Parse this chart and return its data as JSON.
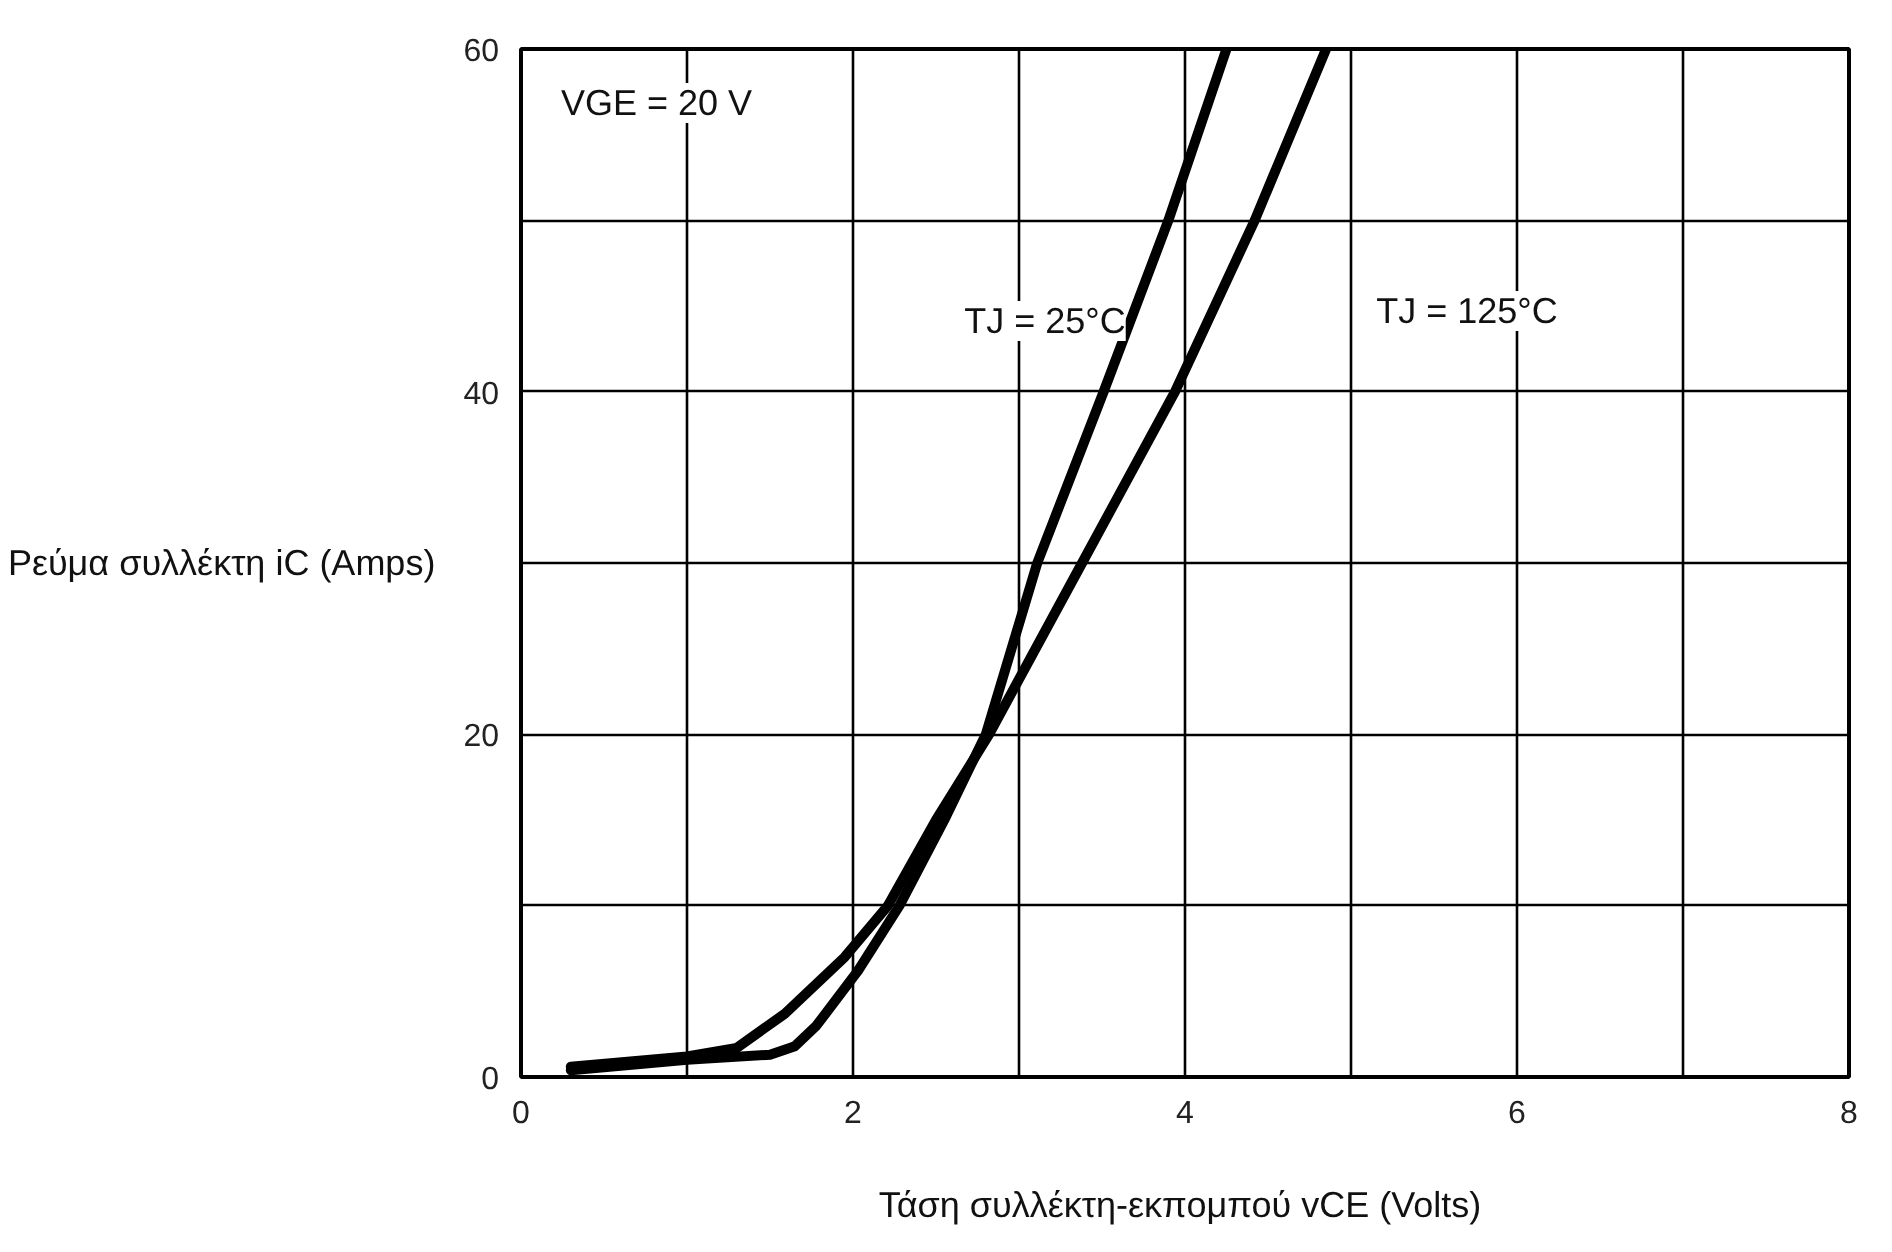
{
  "chart_data": {
    "type": "line",
    "xlabel": "Τάση συλλέκτη-εκπομπού  vCE (Volts)",
    "ylabel": "Ρεύμα συλλέκτη  iC (Amps)",
    "annotations": [
      "VGE = 20 V",
      "TJ = 25°C",
      "TJ = 125°C"
    ],
    "series": [
      {
        "color": "#000000",
        "x": [
          0.3,
          1.0,
          1.5,
          1.65,
          1.78,
          2.03,
          2.28,
          2.55,
          2.8,
          3.11,
          3.51,
          3.9,
          4.25
        ],
        "values": [
          0.4,
          1.0,
          1.3,
          1.8,
          3.0,
          6.2,
          10,
          15,
          20,
          30,
          40,
          50,
          60
        ]
      },
      {
        "color": "#000000",
        "x": [
          0.3,
          1.0,
          1.3,
          1.59,
          1.95,
          2.21,
          2.5,
          2.82,
          3.38,
          3.94,
          4.42,
          4.85
        ],
        "values": [
          0.6,
          1.2,
          1.7,
          3.7,
          7.0,
          10,
          15,
          20,
          30,
          40,
          50,
          60
        ]
      }
    ],
    "xlim": [
      0,
      8
    ],
    "ylim": [
      0,
      60
    ],
    "xticks": [
      0,
      {
        "value": 1,
        "label": null
      },
      2,
      {
        "value": 3,
        "label": null
      },
      4,
      {
        "value": 5,
        "label": null
      },
      6,
      {
        "value": 7,
        "label": null
      },
      8
    ],
    "yticks": [
      0,
      {
        "value": 10,
        "label": null
      },
      20,
      {
        "value": 30,
        "label": null
      },
      40,
      {
        "value": 50,
        "label": null
      },
      60
    ],
    "grid": true,
    "line_style": "solid"
  }
}
